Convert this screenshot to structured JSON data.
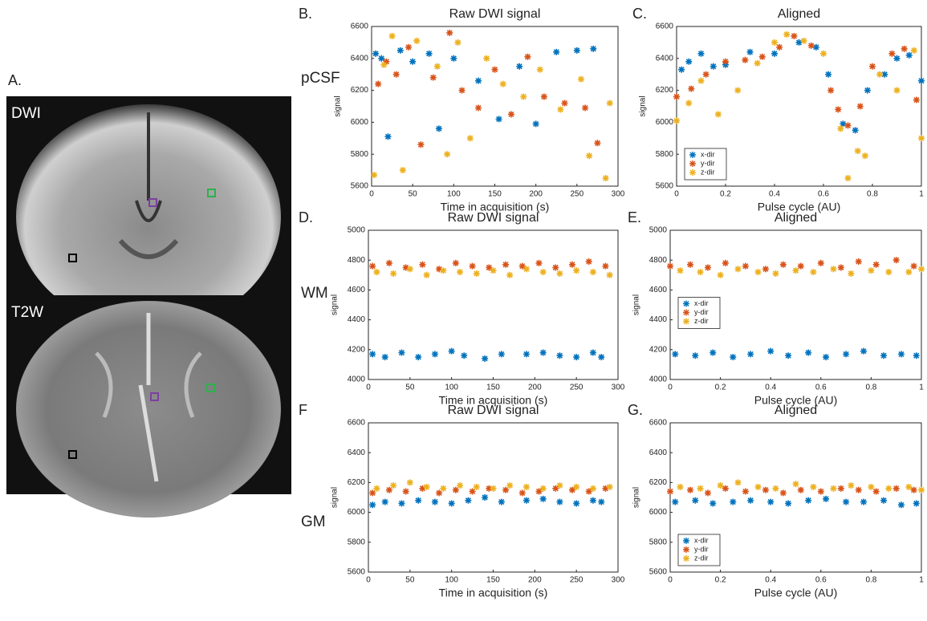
{
  "panel_a": {
    "label": "A.",
    "images": [
      {
        "label": "DWI"
      },
      {
        "label": "T2W"
      }
    ]
  },
  "chart_data": [
    {
      "type": "scatter",
      "panel_label": "B.",
      "row_label": "pCSF",
      "title": "Raw DWI signal",
      "x_label": "Time in acquisition (s)",
      "y_label": "signal",
      "xlim": [
        0,
        300
      ],
      "xticks": [
        0,
        50,
        100,
        150,
        200,
        250,
        300
      ],
      "ylim": [
        5600,
        6600
      ],
      "yticks": [
        5600,
        5800,
        6000,
        6200,
        6400,
        6600
      ],
      "legend": false,
      "series": [
        {
          "color": "#0072bd",
          "x": [
            5,
            12,
            20,
            35,
            50,
            70,
            82,
            100,
            130,
            155,
            180,
            200,
            225,
            250,
            270
          ],
          "values": [
            6430,
            6400,
            5910,
            6450,
            6380,
            6430,
            5960,
            6400,
            6260,
            6020,
            6350,
            5990,
            6440,
            6450,
            6460
          ]
        },
        {
          "color": "#d95319",
          "x": [
            8,
            18,
            30,
            45,
            60,
            75,
            95,
            110,
            130,
            150,
            170,
            190,
            210,
            235,
            260,
            275
          ],
          "values": [
            6240,
            6380,
            6300,
            6470,
            5860,
            6280,
            6560,
            6200,
            6090,
            6330,
            6050,
            6410,
            6160,
            6120,
            6090,
            5870
          ]
        },
        {
          "color": "#edb120",
          "x": [
            3,
            15,
            25,
            38,
            55,
            80,
            92,
            105,
            120,
            140,
            160,
            185,
            205,
            230,
            255,
            265,
            285,
            290
          ],
          "values": [
            5670,
            6360,
            6540,
            5700,
            6510,
            6350,
            5800,
            6500,
            5900,
            6400,
            6240,
            6160,
            6330,
            6080,
            6270,
            5790,
            5650,
            6120
          ]
        }
      ]
    },
    {
      "type": "scatter",
      "panel_label": "C.",
      "title": "Aligned",
      "x_label": "Pulse cycle (AU)",
      "y_label": "signal",
      "xlim": [
        0,
        1
      ],
      "xticks": [
        0,
        0.2,
        0.4,
        0.6,
        0.8,
        1
      ],
      "ylim": [
        5600,
        6600
      ],
      "yticks": [
        5600,
        5800,
        6000,
        6200,
        6400,
        6600
      ],
      "legend": true,
      "legend_position": "lower left",
      "series": [
        {
          "name": "x-dir",
          "color": "#0072bd",
          "x": [
            0.02,
            0.05,
            0.1,
            0.15,
            0.2,
            0.3,
            0.4,
            0.5,
            0.57,
            0.62,
            0.68,
            0.73,
            0.78,
            0.85,
            0.9,
            0.95,
            1.0
          ],
          "values": [
            6330,
            6380,
            6430,
            6350,
            6360,
            6440,
            6430,
            6500,
            6470,
            6300,
            5990,
            5950,
            6200,
            6300,
            6400,
            6420,
            6260
          ]
        },
        {
          "name": "y-dir",
          "color": "#d95319",
          "x": [
            0.0,
            0.06,
            0.12,
            0.2,
            0.28,
            0.35,
            0.42,
            0.48,
            0.55,
            0.63,
            0.66,
            0.7,
            0.75,
            0.8,
            0.88,
            0.93,
            0.98
          ],
          "values": [
            6160,
            6210,
            6300,
            6380,
            6390,
            6410,
            6470,
            6540,
            6480,
            6200,
            6080,
            5980,
            6100,
            6350,
            6430,
            6460,
            6140
          ]
        },
        {
          "name": "z-dir",
          "color": "#edb120",
          "x": [
            0.0,
            0.05,
            0.1,
            0.17,
            0.25,
            0.33,
            0.4,
            0.45,
            0.52,
            0.6,
            0.67,
            0.7,
            0.74,
            0.77,
            0.83,
            0.9,
            0.97,
            1.0
          ],
          "values": [
            6010,
            6120,
            6260,
            6050,
            6200,
            6370,
            6500,
            6550,
            6510,
            6430,
            5960,
            5650,
            5820,
            5790,
            6300,
            6200,
            6450,
            5900
          ]
        }
      ]
    },
    {
      "type": "scatter",
      "panel_label": "D.",
      "row_label": "WM",
      "title": "Raw DWI signal",
      "x_label": "Time in acquisition (s)",
      "y_label": "signal",
      "xlim": [
        0,
        300
      ],
      "xticks": [
        0,
        50,
        100,
        150,
        200,
        250,
        300
      ],
      "ylim": [
        4000,
        5000
      ],
      "yticks": [
        4000,
        4200,
        4400,
        4600,
        4800,
        5000
      ],
      "legend": false,
      "series": [
        {
          "color": "#0072bd",
          "x": [
            5,
            20,
            40,
            60,
            80,
            100,
            115,
            140,
            160,
            190,
            210,
            230,
            250,
            270,
            280
          ],
          "values": [
            4170,
            4150,
            4180,
            4150,
            4170,
            4190,
            4160,
            4140,
            4170,
            4170,
            4180,
            4160,
            4150,
            4180,
            4150
          ]
        },
        {
          "color": "#d95319",
          "x": [
            5,
            25,
            45,
            65,
            85,
            105,
            125,
            145,
            165,
            185,
            205,
            225,
            245,
            265,
            285
          ],
          "values": [
            4760,
            4780,
            4750,
            4770,
            4740,
            4780,
            4760,
            4750,
            4770,
            4760,
            4780,
            4750,
            4770,
            4790,
            4760
          ]
        },
        {
          "color": "#edb120",
          "x": [
            10,
            30,
            50,
            70,
            90,
            110,
            130,
            150,
            170,
            190,
            210,
            230,
            250,
            270,
            290
          ],
          "values": [
            4720,
            4710,
            4740,
            4700,
            4730,
            4720,
            4710,
            4730,
            4700,
            4740,
            4720,
            4710,
            4730,
            4720,
            4700
          ]
        }
      ]
    },
    {
      "type": "scatter",
      "panel_label": "E.",
      "title": "Aligned",
      "x_label": "Pulse cycle (AU)",
      "y_label": "signal",
      "xlim": [
        0,
        1
      ],
      "xticks": [
        0,
        0.2,
        0.4,
        0.6,
        0.8,
        1
      ],
      "ylim": [
        4000,
        5000
      ],
      "yticks": [
        4000,
        4200,
        4400,
        4600,
        4800,
        5000
      ],
      "legend": true,
      "legend_position": "center left",
      "series": [
        {
          "name": "x-dir",
          "color": "#0072bd",
          "x": [
            0.02,
            0.1,
            0.17,
            0.25,
            0.32,
            0.4,
            0.47,
            0.55,
            0.62,
            0.7,
            0.77,
            0.85,
            0.92,
            0.98
          ],
          "values": [
            4170,
            4160,
            4180,
            4150,
            4170,
            4190,
            4160,
            4180,
            4150,
            4170,
            4190,
            4160,
            4170,
            4160
          ]
        },
        {
          "name": "y-dir",
          "color": "#d95319",
          "x": [
            0.0,
            0.08,
            0.15,
            0.22,
            0.3,
            0.38,
            0.45,
            0.52,
            0.6,
            0.68,
            0.75,
            0.82,
            0.9,
            0.97
          ],
          "values": [
            4760,
            4770,
            4750,
            4780,
            4760,
            4740,
            4770,
            4760,
            4780,
            4750,
            4790,
            4770,
            4800,
            4760
          ]
        },
        {
          "name": "z-dir",
          "color": "#edb120",
          "x": [
            0.04,
            0.12,
            0.2,
            0.27,
            0.35,
            0.42,
            0.5,
            0.57,
            0.65,
            0.72,
            0.8,
            0.87,
            0.95,
            1.0
          ],
          "values": [
            4730,
            4720,
            4700,
            4740,
            4720,
            4710,
            4730,
            4720,
            4740,
            4710,
            4730,
            4720,
            4720,
            4740
          ]
        }
      ]
    },
    {
      "type": "scatter",
      "panel_label": "F",
      "row_label": "GM",
      "title": "Raw DWI signal",
      "x_label": "Time in acquisition (s)",
      "y_label": "signal",
      "xlim": [
        0,
        300
      ],
      "xticks": [
        0,
        50,
        100,
        150,
        200,
        250,
        300
      ],
      "ylim": [
        5600,
        6600
      ],
      "yticks": [
        5600,
        5800,
        6000,
        6200,
        6400,
        6600
      ],
      "legend": false,
      "series": [
        {
          "color": "#0072bd",
          "x": [
            5,
            20,
            40,
            60,
            80,
            100,
            120,
            140,
            160,
            190,
            210,
            230,
            250,
            270,
            280
          ],
          "values": [
            6050,
            6070,
            6060,
            6080,
            6070,
            6060,
            6080,
            6100,
            6070,
            6080,
            6090,
            6070,
            6060,
            6080,
            6070
          ]
        },
        {
          "color": "#d95319",
          "x": [
            5,
            25,
            45,
            65,
            85,
            105,
            125,
            145,
            165,
            185,
            205,
            225,
            245,
            265,
            285
          ],
          "values": [
            6130,
            6150,
            6140,
            6160,
            6130,
            6150,
            6140,
            6160,
            6150,
            6130,
            6140,
            6160,
            6150,
            6140,
            6160
          ]
        },
        {
          "color": "#edb120",
          "x": [
            10,
            30,
            50,
            70,
            90,
            110,
            130,
            150,
            170,
            190,
            210,
            230,
            250,
            270,
            290
          ],
          "values": [
            6160,
            6180,
            6200,
            6170,
            6160,
            6180,
            6170,
            6160,
            6180,
            6170,
            6160,
            6180,
            6170,
            6160,
            6170
          ]
        }
      ]
    },
    {
      "type": "scatter",
      "panel_label": "G.",
      "title": "Aligned",
      "x_label": "Pulse cycle (AU)",
      "y_label": "signal",
      "xlim": [
        0,
        1
      ],
      "xticks": [
        0,
        0.2,
        0.4,
        0.6,
        0.8,
        1
      ],
      "ylim": [
        5600,
        6600
      ],
      "yticks": [
        5600,
        5800,
        6000,
        6200,
        6400,
        6600
      ],
      "legend": true,
      "legend_position": "lower left",
      "series": [
        {
          "name": "x-dir",
          "color": "#0072bd",
          "x": [
            0.02,
            0.1,
            0.17,
            0.25,
            0.32,
            0.4,
            0.47,
            0.55,
            0.62,
            0.7,
            0.77,
            0.85,
            0.92,
            0.98
          ],
          "values": [
            6070,
            6080,
            6060,
            6070,
            6080,
            6070,
            6060,
            6080,
            6090,
            6070,
            6070,
            6080,
            6050,
            6060
          ]
        },
        {
          "name": "y-dir",
          "color": "#d95319",
          "x": [
            0.0,
            0.08,
            0.15,
            0.22,
            0.3,
            0.38,
            0.45,
            0.52,
            0.6,
            0.68,
            0.75,
            0.82,
            0.9,
            0.97
          ],
          "values": [
            6140,
            6150,
            6130,
            6160,
            6140,
            6150,
            6130,
            6150,
            6140,
            6160,
            6150,
            6140,
            6160,
            6150
          ]
        },
        {
          "name": "z-dir",
          "color": "#edb120",
          "x": [
            0.04,
            0.12,
            0.2,
            0.27,
            0.35,
            0.42,
            0.5,
            0.57,
            0.65,
            0.72,
            0.8,
            0.87,
            0.95,
            1.0
          ],
          "values": [
            6170,
            6160,
            6180,
            6200,
            6170,
            6160,
            6190,
            6170,
            6160,
            6180,
            6170,
            6160,
            6170,
            6150
          ]
        }
      ]
    }
  ]
}
